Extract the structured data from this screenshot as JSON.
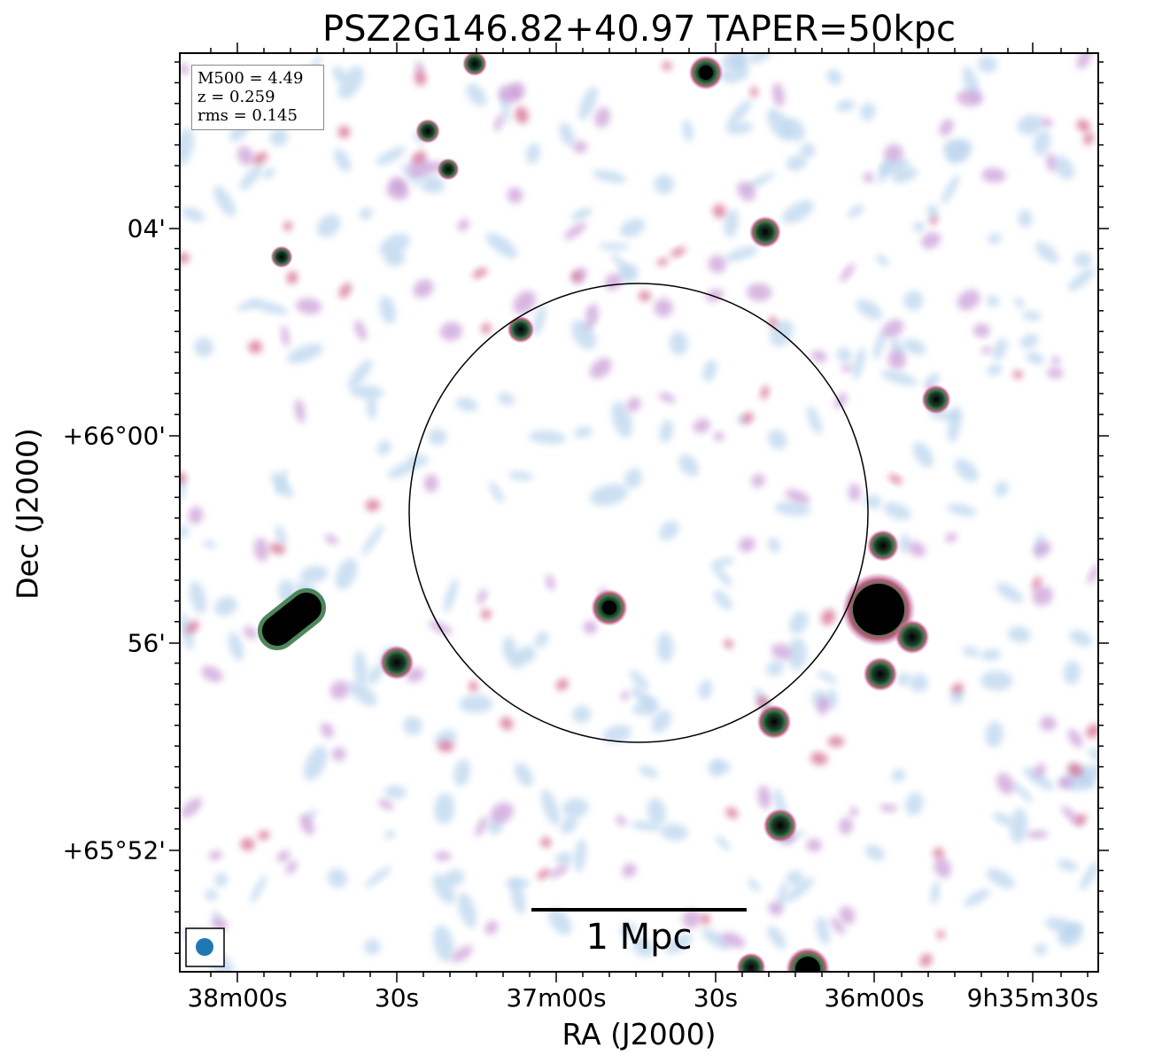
{
  "figure": {
    "title": "PSZ2G146.82+40.97 TAPER=50kpc",
    "xlabel": "RA (J2000)",
    "ylabel": "Dec (J2000)",
    "info": {
      "line1": "M500 = 4.49",
      "line2": "z = 0.259",
      "line3": "rms = 0.145"
    },
    "scalebar_label": "1 Mpc",
    "x_ticks": [
      "38m00s",
      "30s",
      "37m00s",
      "30s",
      "36m00s",
      "9h35m30s"
    ],
    "y_ticks": [
      "04'",
      "+66°00'",
      "56'",
      "+65°52'"
    ],
    "colors": {
      "faint": "#bcd6ee",
      "mid": "#c89ad6",
      "bright": "#d46a8e",
      "core": "#2e6b3e",
      "peak": "#000000",
      "beam": "#1f77b4"
    }
  }
}
